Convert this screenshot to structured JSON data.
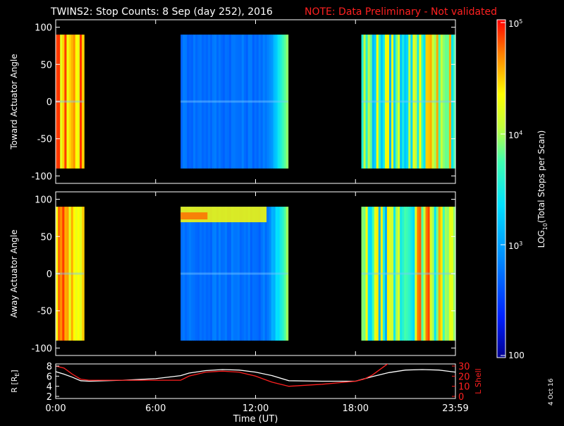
{
  "title": {
    "main": "TWINS2: Stop Counts:  8 Sep (day 252), 2016",
    "note": "NOTE: Data Preliminary - Not validated"
  },
  "side_stamp": "4 Oct 16",
  "colors": {
    "background": "#000000",
    "axis": "#ffffff",
    "note": "#ff2020",
    "rl_black_line": "#ffffff",
    "lshell_line": "#ff2020"
  },
  "chart_data": [
    {
      "type": "heatmap",
      "name": "toward",
      "ylabel": "Toward Actuator Angle",
      "ylim": [
        -110,
        110
      ],
      "yticks": [
        100,
        50,
        0,
        -50,
        -100
      ],
      "ytick_labels": [
        "100",
        "50",
        "0",
        "-50",
        "-100"
      ],
      "xlim": [
        0,
        24
      ],
      "data_blocks": [
        {
          "t_start": 0.0,
          "t_end": 1.7,
          "angle_range": [
            -90,
            90
          ],
          "level": "high"
        },
        {
          "t_start": 7.5,
          "t_end": 13.95,
          "angle_range": [
            -90,
            90
          ],
          "level": "low"
        },
        {
          "t_start": 18.35,
          "t_end": 24.0,
          "angle_range": [
            -90,
            90
          ],
          "level": "mixed"
        }
      ]
    },
    {
      "type": "heatmap",
      "name": "away",
      "ylabel": "Away Actuator Angle",
      "ylim": [
        -110,
        110
      ],
      "yticks": [
        100,
        50,
        0,
        -50,
        -100
      ],
      "ytick_labels": [
        "100",
        "50",
        "0",
        "-50",
        "-100"
      ],
      "xlim": [
        0,
        24
      ],
      "data_blocks": [
        {
          "t_start": 0.0,
          "t_end": 1.7,
          "angle_range": [
            -90,
            90
          ],
          "level": "high"
        },
        {
          "t_start": 7.5,
          "t_end": 13.95,
          "angle_range": [
            -90,
            90
          ],
          "level": "low"
        },
        {
          "t_start": 18.35,
          "t_end": 24.0,
          "angle_range": [
            -90,
            90
          ],
          "level": "mixed"
        }
      ]
    },
    {
      "type": "line",
      "name": "orbit",
      "ylabel_left": "R [R",
      "ylabel_left_sub": "E",
      "ylabel_left_end": "]",
      "ylabel_right": "L Shell",
      "ylim_left": [
        2,
        8
      ],
      "yticks_left": [
        "8",
        "6",
        "4",
        "2"
      ],
      "ylim_right": [
        0,
        30
      ],
      "yticks_right": [
        "30",
        "20",
        "10",
        "0"
      ],
      "xlim": [
        0,
        24
      ],
      "xticks": [
        0,
        6,
        12,
        18,
        24
      ],
      "xtick_labels": [
        "0:00",
        "6:00",
        "12:00",
        "18:00",
        "23:59"
      ],
      "xlabel": "Time (UT)",
      "series": [
        {
          "axis": "left",
          "x": [
            0,
            0.5,
            1.0,
            1.5,
            2.0,
            4.0,
            6.0,
            7.5,
            8.0,
            9.0,
            10.0,
            11.0,
            12.0,
            13.0,
            14.0,
            16.0,
            18.0,
            19.0,
            20.0,
            21.0,
            22.0,
            23.0,
            24.0
          ],
          "y": [
            6.9,
            6.4,
            5.8,
            5.1,
            5.0,
            5.2,
            5.5,
            6.1,
            6.6,
            7.1,
            7.3,
            7.2,
            6.8,
            6.1,
            5.1,
            5.0,
            5.0,
            5.9,
            6.7,
            7.2,
            7.3,
            7.2,
            6.8
          ]
        },
        {
          "axis": "right",
          "x": [
            0,
            0.5,
            1.0,
            1.5,
            2.0,
            4.0,
            6.0,
            7.5,
            8.0,
            9.0,
            10.0,
            11.0,
            12.0,
            13.0,
            14.0,
            16.0,
            18.0,
            18.5,
            19.0,
            19.5,
            20.0
          ],
          "y": [
            30,
            28,
            22,
            17,
            16,
            16,
            16,
            16,
            20,
            24,
            25,
            24,
            20,
            14,
            10,
            12,
            15,
            17,
            21,
            27,
            33
          ]
        }
      ]
    }
  ],
  "colorbar": {
    "label": "LOG",
    "label_sub": "10",
    "label_rest": "(Total Stops per Scan)",
    "tick_base": "10",
    "tick_exp": [
      "5",
      "4",
      "3"
    ],
    "bottom_tick": "100",
    "range": [
      100,
      100000
    ]
  }
}
